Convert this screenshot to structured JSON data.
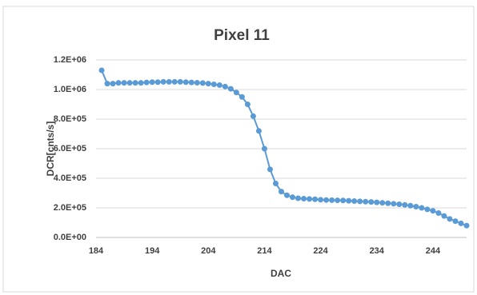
{
  "chart_data": {
    "type": "line",
    "title": "Pixel 11",
    "x_label": "DAC",
    "y_label": "DCR[cnts/s]",
    "x": [
      185,
      186,
      187,
      188,
      189,
      190,
      191,
      192,
      193,
      194,
      195,
      196,
      197,
      198,
      199,
      200,
      201,
      202,
      203,
      204,
      205,
      206,
      207,
      208,
      209,
      210,
      211,
      212,
      213,
      214,
      215,
      216,
      217,
      218,
      219,
      220,
      221,
      222,
      223,
      224,
      225,
      226,
      227,
      228,
      229,
      230,
      231,
      232,
      233,
      234,
      235,
      236,
      237,
      238,
      239,
      240,
      241,
      242,
      243,
      244,
      245,
      246,
      247,
      248,
      249,
      250
    ],
    "series": [
      {
        "name": "Pixel 11",
        "color": "#5b9bd5",
        "values": [
          1130000,
          1040000,
          1040000,
          1045000,
          1045000,
          1045000,
          1045000,
          1045000,
          1048000,
          1050000,
          1050000,
          1052000,
          1052000,
          1052000,
          1052000,
          1050000,
          1048000,
          1046000,
          1044000,
          1040000,
          1035000,
          1030000,
          1020000,
          1005000,
          980000,
          950000,
          900000,
          820000,
          720000,
          600000,
          460000,
          365000,
          310000,
          285000,
          272000,
          265000,
          262000,
          260000,
          258000,
          255000,
          253000,
          252000,
          251000,
          250000,
          248000,
          246000,
          244000,
          242000,
          240000,
          237000,
          234000,
          231000,
          228000,
          224000,
          220000,
          215000,
          208000,
          200000,
          190000,
          180000,
          165000,
          145000,
          125000,
          110000,
          95000,
          80000
        ]
      }
    ],
    "xlim": [
      184,
      250
    ],
    "xticks": [
      184,
      194,
      204,
      214,
      224,
      234,
      244
    ],
    "ylim": [
      0,
      1200000
    ],
    "yticks": [
      {
        "value": 0,
        "label": "0.0E+00"
      },
      {
        "value": 200000,
        "label": "2.0E+05"
      },
      {
        "value": 400000,
        "label": "4.0E+05"
      },
      {
        "value": 600000,
        "label": "6.0E+05"
      },
      {
        "value": 800000,
        "label": "8.0E+05"
      },
      {
        "value": 1000000,
        "label": "1.0E+06"
      },
      {
        "value": 1200000,
        "label": "1.2E+06"
      }
    ],
    "grid": true
  }
}
